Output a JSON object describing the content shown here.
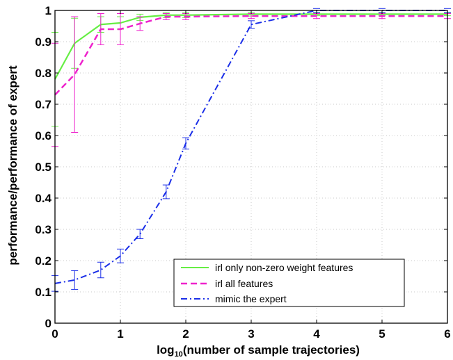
{
  "chart_data": {
    "type": "line",
    "title": "",
    "xlabel_prefix": "log",
    "xlabel_sub": "10",
    "xlabel_rest": "(number of sample trajectories)",
    "ylabel": "performance/performance of expert",
    "xlim": [
      0,
      6
    ],
    "ylim": [
      0,
      1
    ],
    "xticks": [
      0,
      1,
      2,
      3,
      4,
      5,
      6
    ],
    "xtick_labels": [
      "0",
      "1",
      "2",
      "3",
      "4",
      "5",
      "6"
    ],
    "yticks": [
      0,
      0.1,
      0.2,
      0.3,
      0.4,
      0.5,
      0.6,
      0.7,
      0.8,
      0.9,
      1
    ],
    "ytick_labels": [
      "0",
      "0.1",
      "0.2",
      "0.3",
      "0.4",
      "0.5",
      "0.6",
      "0.7",
      "0.8",
      "0.9",
      "1"
    ],
    "grid": true,
    "legend_position": "bottom-right",
    "series": [
      {
        "name": "irl only non-zero weight features",
        "color": "#66ee44",
        "dash": "solid",
        "x": [
          0,
          0.3,
          0.7,
          1.0,
          1.3,
          1.7,
          2.0,
          3.0,
          4.0,
          5.0,
          6.0
        ],
        "y": [
          0.78,
          0.895,
          0.955,
          0.96,
          0.978,
          0.985,
          0.985,
          0.988,
          0.988,
          0.988,
          0.988
        ],
        "err": [
          0.15,
          0.08,
          0.025,
          0.02,
          0.01,
          0.008,
          0.008,
          0.006,
          0.005,
          0.005,
          0.005
        ]
      },
      {
        "name": "irl all features",
        "color": "#ee22cc",
        "dash": "dashed",
        "x": [
          0,
          0.3,
          0.7,
          1.0,
          1.3,
          1.7,
          2.0,
          3.0,
          4.0,
          5.0,
          6.0
        ],
        "y": [
          0.73,
          0.795,
          0.94,
          0.94,
          0.958,
          0.98,
          0.98,
          0.982,
          0.982,
          0.982,
          0.982
        ],
        "err": [
          0.165,
          0.185,
          0.05,
          0.05,
          0.022,
          0.01,
          0.01,
          0.008,
          0.008,
          0.008,
          0.008
        ]
      },
      {
        "name": "mimic the expert",
        "color": "#1a2ee8",
        "dash": "dashdot",
        "x": [
          0,
          0.3,
          0.7,
          1.0,
          1.3,
          1.7,
          2.0,
          3.0,
          4.0,
          5.0,
          6.0
        ],
        "y": [
          0.127,
          0.138,
          0.17,
          0.215,
          0.285,
          0.42,
          0.575,
          0.955,
          1.0,
          1.0,
          1.0
        ],
        "err": [
          0.025,
          0.03,
          0.025,
          0.022,
          0.015,
          0.022,
          0.018,
          0.012,
          0.006,
          0.006,
          0.006
        ]
      }
    ]
  }
}
